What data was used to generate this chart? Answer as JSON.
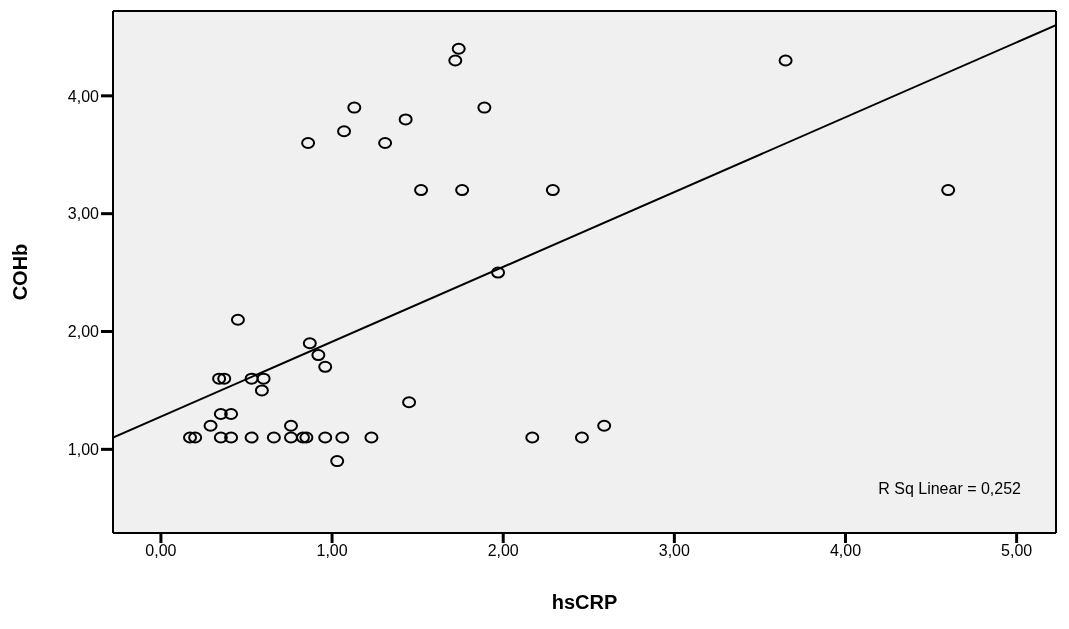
{
  "chart_data": {
    "type": "scatter",
    "xlabel": "hsCRP",
    "ylabel": "COHb",
    "xlim": [
      -0.28,
      5.23
    ],
    "ylim": [
      0.29,
      4.72
    ],
    "xticks": [
      {
        "value": 0,
        "label": "0,00"
      },
      {
        "value": 1,
        "label": "1,00"
      },
      {
        "value": 2,
        "label": "2,00"
      },
      {
        "value": 3,
        "label": "3,00"
      },
      {
        "value": 4,
        "label": "4,00"
      },
      {
        "value": 5,
        "label": "5,00"
      }
    ],
    "yticks": [
      {
        "value": 1,
        "label": "1,00"
      },
      {
        "value": 2,
        "label": "2,00"
      },
      {
        "value": 3,
        "label": "3,00"
      },
      {
        "value": 4,
        "label": "4,00"
      }
    ],
    "grid": false,
    "line_style": "solid",
    "annotations": [
      "R Sq Linear = 0,252"
    ],
    "series": [
      {
        "marker": "circle",
        "color": "#000000",
        "x": [
          0.45,
          0.87,
          0.92,
          0.96,
          0.34,
          0.37,
          0.53,
          0.6,
          0.59,
          1.45,
          0.35,
          0.41,
          0.29,
          0.76,
          0.17,
          0.2,
          0.35,
          0.41,
          0.53,
          0.66,
          0.76,
          0.83,
          0.85,
          0.96,
          1.06,
          1.23,
          1.03,
          1.74,
          1.72,
          1.13,
          1.89,
          1.07,
          1.43,
          0.86,
          1.31,
          1.52,
          1.76,
          2.29,
          3.65,
          4.6,
          1.97,
          2.17,
          2.46,
          2.59
        ],
        "values": [
          2.1,
          1.9,
          1.8,
          1.7,
          1.6,
          1.6,
          1.6,
          1.6,
          1.5,
          1.4,
          1.3,
          1.3,
          1.2,
          1.2,
          1.1,
          1.1,
          1.1,
          1.1,
          1.1,
          1.1,
          1.1,
          1.1,
          1.1,
          1.1,
          1.1,
          1.1,
          0.9,
          4.4,
          4.3,
          3.9,
          3.9,
          3.7,
          3.8,
          3.6,
          3.6,
          3.2,
          3.2,
          3.2,
          4.3,
          3.2,
          2.5,
          1.1,
          1.1,
          1.2
        ]
      },
      {
        "type": "line",
        "marker": "none",
        "color": "#000000",
        "x": [
          -0.28,
          5.23
        ],
        "values": [
          1.1,
          4.6
        ]
      }
    ]
  }
}
